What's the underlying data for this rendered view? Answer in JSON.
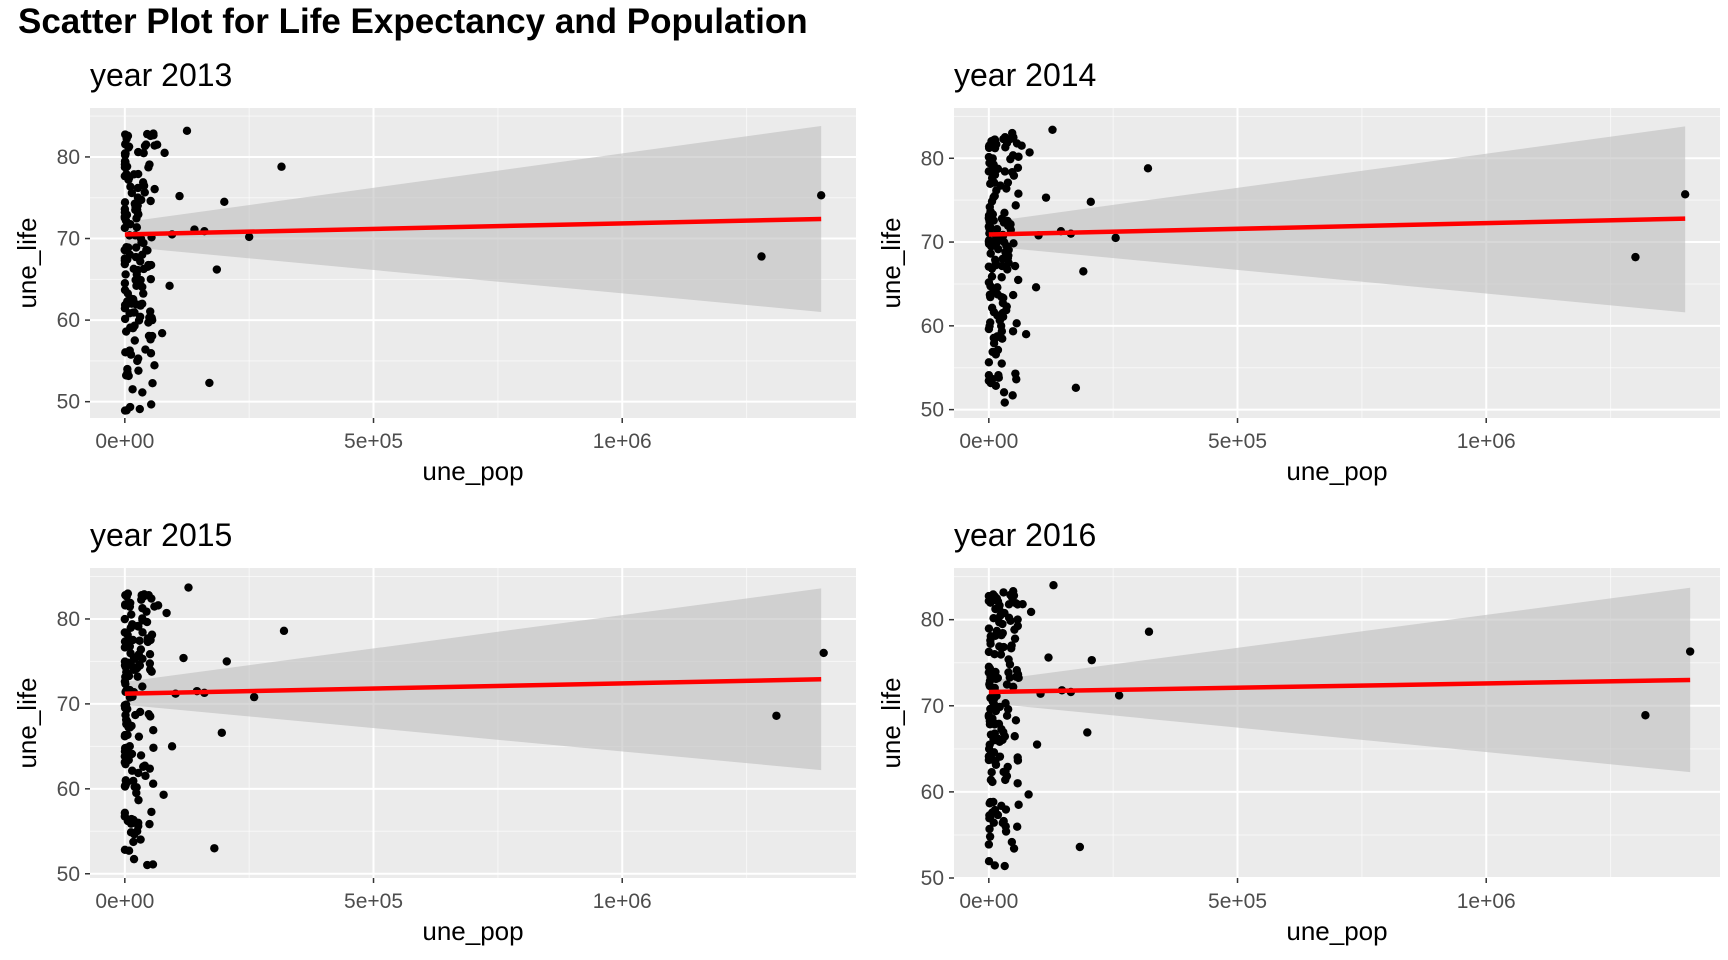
{
  "page": {
    "title": "Scatter Plot for Life Expectancy and Population"
  },
  "style": {
    "panel_bg": "#ebebeb",
    "grid_major": "#ffffff",
    "point_color": "#000000",
    "fit_line_color": "#ff0000",
    "ribbon_color": "#bebebe"
  },
  "chart_data": [
    {
      "type": "scatter",
      "title": "year 2013",
      "xlabel": "une_pop",
      "ylabel": "une_life",
      "xlim": [
        -70000,
        1470000
      ],
      "ylim": [
        48,
        86
      ],
      "x_ticks": [
        0,
        500000,
        1000000
      ],
      "x_tick_labels": [
        "0e+00",
        "5e+05",
        "1e+06"
      ],
      "y_ticks": [
        50,
        60,
        70,
        80
      ],
      "y_tick_labels": [
        "50",
        "60",
        "70",
        "80"
      ],
      "grid": true,
      "fit_line": {
        "x": [
          0,
          1400000
        ],
        "y": [
          70.5,
          72.4
        ]
      },
      "confidence_band": {
        "x": [
          0,
          1400000
        ],
        "lower": [
          69.0,
          61.0
        ],
        "upper": [
          72.0,
          83.8
        ]
      },
      "points": {
        "x": [
          1280000,
          1400000,
          315000,
          200000,
          185000,
          170000,
          250000,
          125000,
          90000,
          140000,
          160000,
          75000,
          45000,
          95000,
          110000,
          25000,
          35000,
          55000,
          65000,
          80000
        ],
        "y": [
          67.8,
          75.3,
          78.8,
          74.5,
          66.2,
          52.3,
          70.2,
          83.2,
          64.2,
          71.1,
          70.9,
          58.4,
          82.8,
          70.5,
          75.2,
          55.0,
          62.0,
          60.0,
          81.5,
          80.5
        ]
      },
      "cluster": {
        "x_range": [
          0,
          60000
        ],
        "y_range": [
          48.5,
          83
        ],
        "n": 150
      }
    },
    {
      "type": "scatter",
      "title": "year 2014",
      "xlabel": "une_pop",
      "ylabel": "une_life",
      "xlim": [
        -70000,
        1470000
      ],
      "ylim": [
        49,
        86
      ],
      "x_ticks": [
        0,
        500000,
        1000000
      ],
      "x_tick_labels": [
        "0e+00",
        "5e+05",
        "1e+06"
      ],
      "y_ticks": [
        50,
        60,
        70,
        80
      ],
      "y_tick_labels": [
        "50",
        "60",
        "70",
        "80"
      ],
      "grid": true,
      "fit_line": {
        "x": [
          0,
          1400000
        ],
        "y": [
          70.9,
          72.8
        ]
      },
      "confidence_band": {
        "x": [
          0,
          1400000
        ],
        "lower": [
          69.5,
          61.6
        ],
        "upper": [
          72.4,
          83.8
        ]
      },
      "points": {
        "x": [
          1300000,
          1400000,
          320000,
          205000,
          190000,
          175000,
          255000,
          128000,
          95000,
          145000,
          165000,
          75000,
          47000,
          100000,
          115000,
          26000,
          36000,
          56000,
          66000,
          82000
        ],
        "y": [
          68.2,
          75.7,
          78.8,
          74.8,
          66.5,
          52.6,
          70.5,
          83.4,
          64.6,
          71.3,
          71.0,
          59.0,
          83.0,
          70.8,
          75.3,
          55.5,
          62.3,
          60.3,
          81.5,
          80.7
        ]
      },
      "cluster": {
        "x_range": [
          0,
          60000
        ],
        "y_range": [
          50,
          83
        ],
        "n": 150
      }
    },
    {
      "type": "scatter",
      "title": "year 2015",
      "xlabel": "une_pop",
      "ylabel": "une_life",
      "xlim": [
        -70000,
        1470000
      ],
      "ylim": [
        49.5,
        86
      ],
      "x_ticks": [
        0,
        500000,
        1000000
      ],
      "x_tick_labels": [
        "0e+00",
        "5e+05",
        "1e+06"
      ],
      "y_ticks": [
        50,
        60,
        70,
        80
      ],
      "y_tick_labels": [
        "50",
        "60",
        "70",
        "80"
      ],
      "grid": true,
      "fit_line": {
        "x": [
          0,
          1400000
        ],
        "y": [
          71.2,
          72.9
        ]
      },
      "confidence_band": {
        "x": [
          0,
          1400000
        ],
        "lower": [
          69.9,
          62.2
        ],
        "upper": [
          72.6,
          83.6
        ]
      },
      "points": {
        "x": [
          1310000,
          1405000,
          320000,
          205000,
          195000,
          180000,
          260000,
          128000,
          95000,
          145000,
          160000,
          78000,
          48000,
          102000,
          118000,
          27000,
          37000,
          57000,
          67000,
          84000
        ],
        "y": [
          68.6,
          76.0,
          78.6,
          75.0,
          66.6,
          53.0,
          70.8,
          83.7,
          65.0,
          71.5,
          71.3,
          59.3,
          82.8,
          71.2,
          75.4,
          56.0,
          62.6,
          60.6,
          81.6,
          80.7
        ]
      },
      "cluster": {
        "x_range": [
          0,
          60000
        ],
        "y_range": [
          50.8,
          83
        ],
        "n": 150
      }
    },
    {
      "type": "scatter",
      "title": "year 2016",
      "xlabel": "une_pop",
      "ylabel": "une_life",
      "xlim": [
        -70000,
        1470000
      ],
      "ylim": [
        50,
        86
      ],
      "x_ticks": [
        0,
        500000,
        1000000
      ],
      "x_tick_labels": [
        "0e+00",
        "5e+05",
        "1e+06"
      ],
      "y_ticks": [
        50,
        60,
        70,
        80
      ],
      "y_tick_labels": [
        "50",
        "60",
        "70",
        "80"
      ],
      "grid": true,
      "fit_line": {
        "x": [
          0,
          1410000
        ],
        "y": [
          71.6,
          73.0
        ]
      },
      "confidence_band": {
        "x": [
          0,
          1410000
        ],
        "lower": [
          70.3,
          62.3
        ],
        "upper": [
          72.9,
          83.7
        ]
      },
      "points": {
        "x": [
          1320000,
          1410000,
          322000,
          207000,
          198000,
          183000,
          262000,
          130000,
          97000,
          147000,
          165000,
          80000,
          49000,
          104000,
          120000,
          28000,
          38000,
          58000,
          68000,
          85000
        ],
        "y": [
          68.9,
          76.3,
          78.6,
          75.3,
          66.9,
          53.6,
          71.2,
          84.0,
          65.5,
          71.8,
          71.6,
          59.7,
          83.3,
          71.4,
          75.6,
          56.4,
          62.9,
          61.0,
          81.8,
          80.9
        ]
      },
      "cluster": {
        "x_range": [
          0,
          60000
        ],
        "y_range": [
          51.3,
          83.5
        ],
        "n": 150
      }
    }
  ]
}
